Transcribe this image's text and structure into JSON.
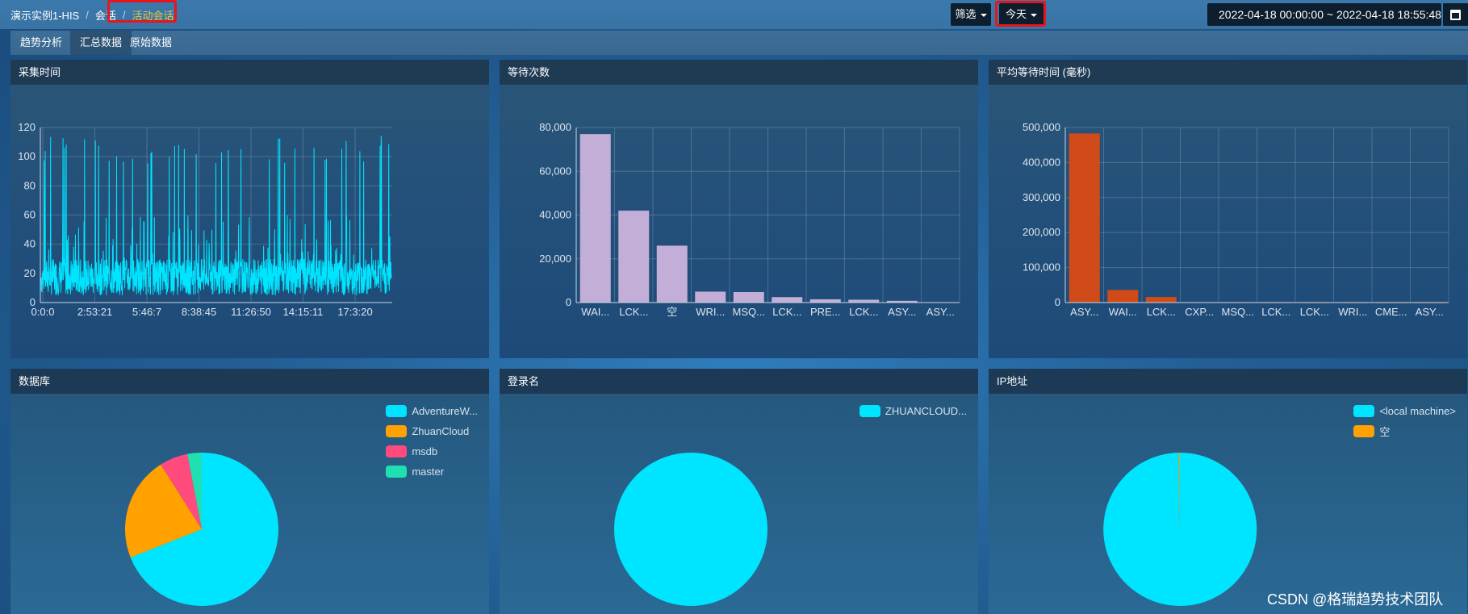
{
  "breadcrumb": {
    "instance": "演示实例1-HIS",
    "separator": "/",
    "section": "会话",
    "current": "活动会话"
  },
  "toolbar": {
    "filter_label": "筛选",
    "today_label": "今天",
    "date_range": "2022-04-18 00:00:00 ~ 2022-04-18 18:55:48"
  },
  "tabs": [
    {
      "label": "趋势分析"
    },
    {
      "label": "汇总数据"
    },
    {
      "label": "原始数据"
    }
  ],
  "panels": {
    "collect_time": {
      "title": "采集时间"
    },
    "wait_count": {
      "title": "等待次数"
    },
    "avg_wait": {
      "title": "平均等待时间 (毫秒)"
    },
    "database": {
      "title": "数据库"
    },
    "login": {
      "title": "登录名"
    },
    "ip": {
      "title": "IP地址"
    }
  },
  "colors": {
    "cyan": "#00e5ff",
    "lavender": "#c2aed6",
    "orange_red": "#d14a1a",
    "orange": "#ffa200",
    "pink": "#ff4a7d",
    "teal": "#1fe0b0",
    "highlight": "#e8141c"
  },
  "chart_data": [
    {
      "id": "collect_time",
      "type": "line",
      "title": "采集时间",
      "x_ticks": [
        "0:0:0",
        "2:53:21",
        "5:46:7",
        "8:38:45",
        "11:26:50",
        "14:15:11",
        "17:3:20"
      ],
      "y_ticks": [
        "0",
        "20",
        "40",
        "60",
        "80",
        "100",
        "120"
      ],
      "ylim": [
        0,
        120
      ],
      "description_of_series": "dense noisy series, baseline 5-30 with frequent spikes to 95-115",
      "baseline_range": [
        5,
        30
      ],
      "spike_range": [
        95,
        115
      ]
    },
    {
      "id": "wait_count",
      "type": "bar",
      "title": "等待次数",
      "categories": [
        "WAI...",
        "LCK...",
        "空",
        "WRI...",
        "MSQ...",
        "LCK...",
        "PRE...",
        "LCK...",
        "ASY...",
        "ASY..."
      ],
      "values": [
        77000,
        42000,
        26000,
        5000,
        4800,
        2500,
        1500,
        1300,
        800,
        200
      ],
      "y_ticks": [
        "0",
        "20,000",
        "40,000",
        "60,000",
        "80,000"
      ],
      "ylim": [
        0,
        80000
      ]
    },
    {
      "id": "avg_wait",
      "type": "bar",
      "title": "平均等待时间 (毫秒)",
      "categories": [
        "ASY...",
        "WAI...",
        "LCK...",
        "CXP...",
        "MSQ...",
        "LCK...",
        "LCK...",
        "WRI...",
        "CME...",
        "ASY..."
      ],
      "values": [
        483000,
        36000,
        16000,
        500,
        300,
        200,
        150,
        100,
        80,
        50
      ],
      "y_ticks": [
        "0",
        "100,000",
        "200,000",
        "300,000",
        "400,000",
        "500,000"
      ],
      "ylim": [
        0,
        500000
      ]
    },
    {
      "id": "database",
      "type": "pie",
      "title": "数据库",
      "labels": [
        "AdventureW...",
        "ZhuanCloud",
        "msdb",
        "master"
      ],
      "values": [
        69,
        22,
        6,
        3
      ]
    },
    {
      "id": "login",
      "type": "pie",
      "title": "登录名",
      "labels": [
        "ZHUANCLOUD..."
      ],
      "values": [
        100
      ]
    },
    {
      "id": "ip",
      "type": "pie",
      "title": "IP地址",
      "labels": [
        "<local machine>",
        "空"
      ],
      "values": [
        99.8,
        0.2
      ]
    }
  ],
  "watermark": "CSDN @格瑞趋势技术团队"
}
